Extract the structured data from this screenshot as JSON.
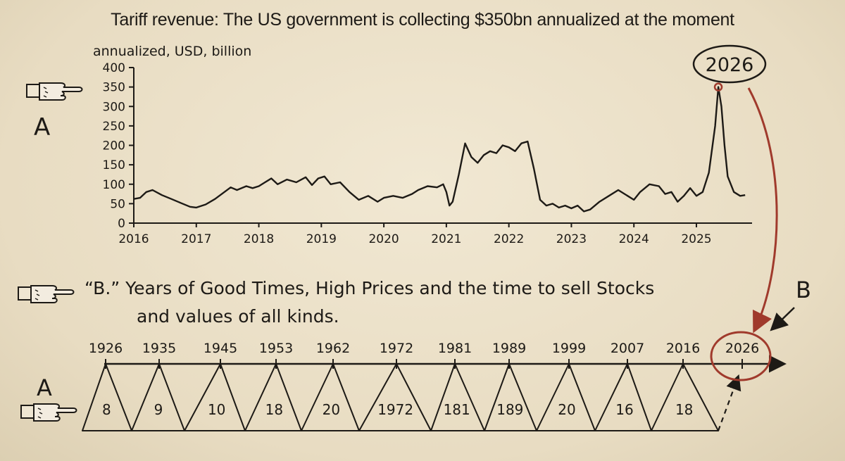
{
  "title": "Tariff revenue: The US government is collecting $350bn annualized at the moment",
  "left_labels": {
    "top_marker": "A",
    "bottom_marker": "A",
    "right_marker": "B"
  },
  "badge": "2026",
  "b_note": {
    "line1": "“B.” Years of Good Times, High Prices and the time to sell Stocks",
    "line2": "and values of all kinds."
  },
  "colors": {
    "ink": "#1d1a16",
    "accent": "#a03a2c",
    "paper": "#eadfc8"
  },
  "icons": [
    "pointing-hand-icon",
    "pointing-hand-icon",
    "pointing-hand-icon"
  ],
  "chart_data": [
    {
      "type": "line",
      "title": "Tariff revenue: The US government is collecting $350bn annualized at the moment",
      "ylabel": "annualized, USD, billion",
      "xlabel": "",
      "ylim": [
        0,
        400
      ],
      "yticks": [
        0,
        50,
        100,
        150,
        200,
        250,
        300,
        350,
        400
      ],
      "xticks": [
        "2016",
        "2017",
        "2018",
        "2019",
        "2020",
        "2021",
        "2022",
        "2023",
        "2024",
        "2025"
      ],
      "xlim": [
        2016,
        2025.8
      ],
      "series": [
        {
          "x": [
            2016.0,
            2016.1,
            2016.2,
            2016.3,
            2016.45,
            2016.6,
            2016.75,
            2016.9,
            2017.0,
            2017.15,
            2017.3,
            2017.45,
            2017.55,
            2017.65,
            2017.8,
            2017.9,
            2018.0,
            2018.1,
            2018.2,
            2018.3,
            2018.45,
            2018.6,
            2018.75,
            2018.85,
            2018.95,
            2019.05,
            2019.15,
            2019.3,
            2019.45,
            2019.6,
            2019.75,
            2019.9,
            2020.0,
            2020.15,
            2020.3,
            2020.45,
            2020.55,
            2020.7,
            2020.85,
            2020.95,
            2021.0,
            2021.05,
            2021.1,
            2021.2,
            2021.3,
            2021.4,
            2021.5,
            2021.6,
            2021.7,
            2021.8,
            2021.9,
            2022.0,
            2022.1,
            2022.2,
            2022.3,
            2022.4,
            2022.5,
            2022.6,
            2022.7,
            2022.8,
            2022.9,
            2023.0,
            2023.1,
            2023.2,
            2023.3,
            2023.45,
            2023.6,
            2023.75,
            2023.9,
            2024.0,
            2024.1,
            2024.25,
            2024.4,
            2024.5,
            2024.6,
            2024.7,
            2024.8,
            2024.9,
            2025.0,
            2025.1,
            2025.2,
            2025.3,
            2025.35,
            2025.4,
            2025.45,
            2025.5,
            2025.6,
            2025.7,
            2025.78
          ],
          "y": [
            62,
            65,
            80,
            85,
            72,
            62,
            52,
            42,
            40,
            48,
            62,
            80,
            92,
            85,
            95,
            90,
            95,
            105,
            115,
            100,
            112,
            105,
            118,
            98,
            115,
            120,
            100,
            105,
            80,
            60,
            70,
            55,
            65,
            70,
            65,
            75,
            85,
            95,
            92,
            100,
            80,
            45,
            55,
            125,
            205,
            170,
            155,
            175,
            185,
            180,
            200,
            195,
            185,
            205,
            210,
            140,
            60,
            45,
            50,
            40,
            45,
            38,
            45,
            30,
            35,
            55,
            70,
            85,
            70,
            60,
            80,
            100,
            95,
            75,
            80,
            55,
            70,
            90,
            70,
            80,
            130,
            250,
            350,
            300,
            200,
            120,
            80,
            70,
            72
          ]
        }
      ]
    },
    {
      "type": "line",
      "title": "“B.” Years of Good Times, High Prices and the time to sell Stocks and values of all kinds.",
      "xticks": [
        "1926",
        "1935",
        "1945",
        "1953",
        "1962",
        "1972",
        "1981",
        "1989",
        "1999",
        "2007",
        "2016",
        "2026"
      ],
      "triangle_labels": [
        "8",
        "9",
        "10",
        "18",
        "20",
        "1972",
        "181",
        "189",
        "20",
        "16",
        "18"
      ],
      "highlight": "2026"
    }
  ]
}
